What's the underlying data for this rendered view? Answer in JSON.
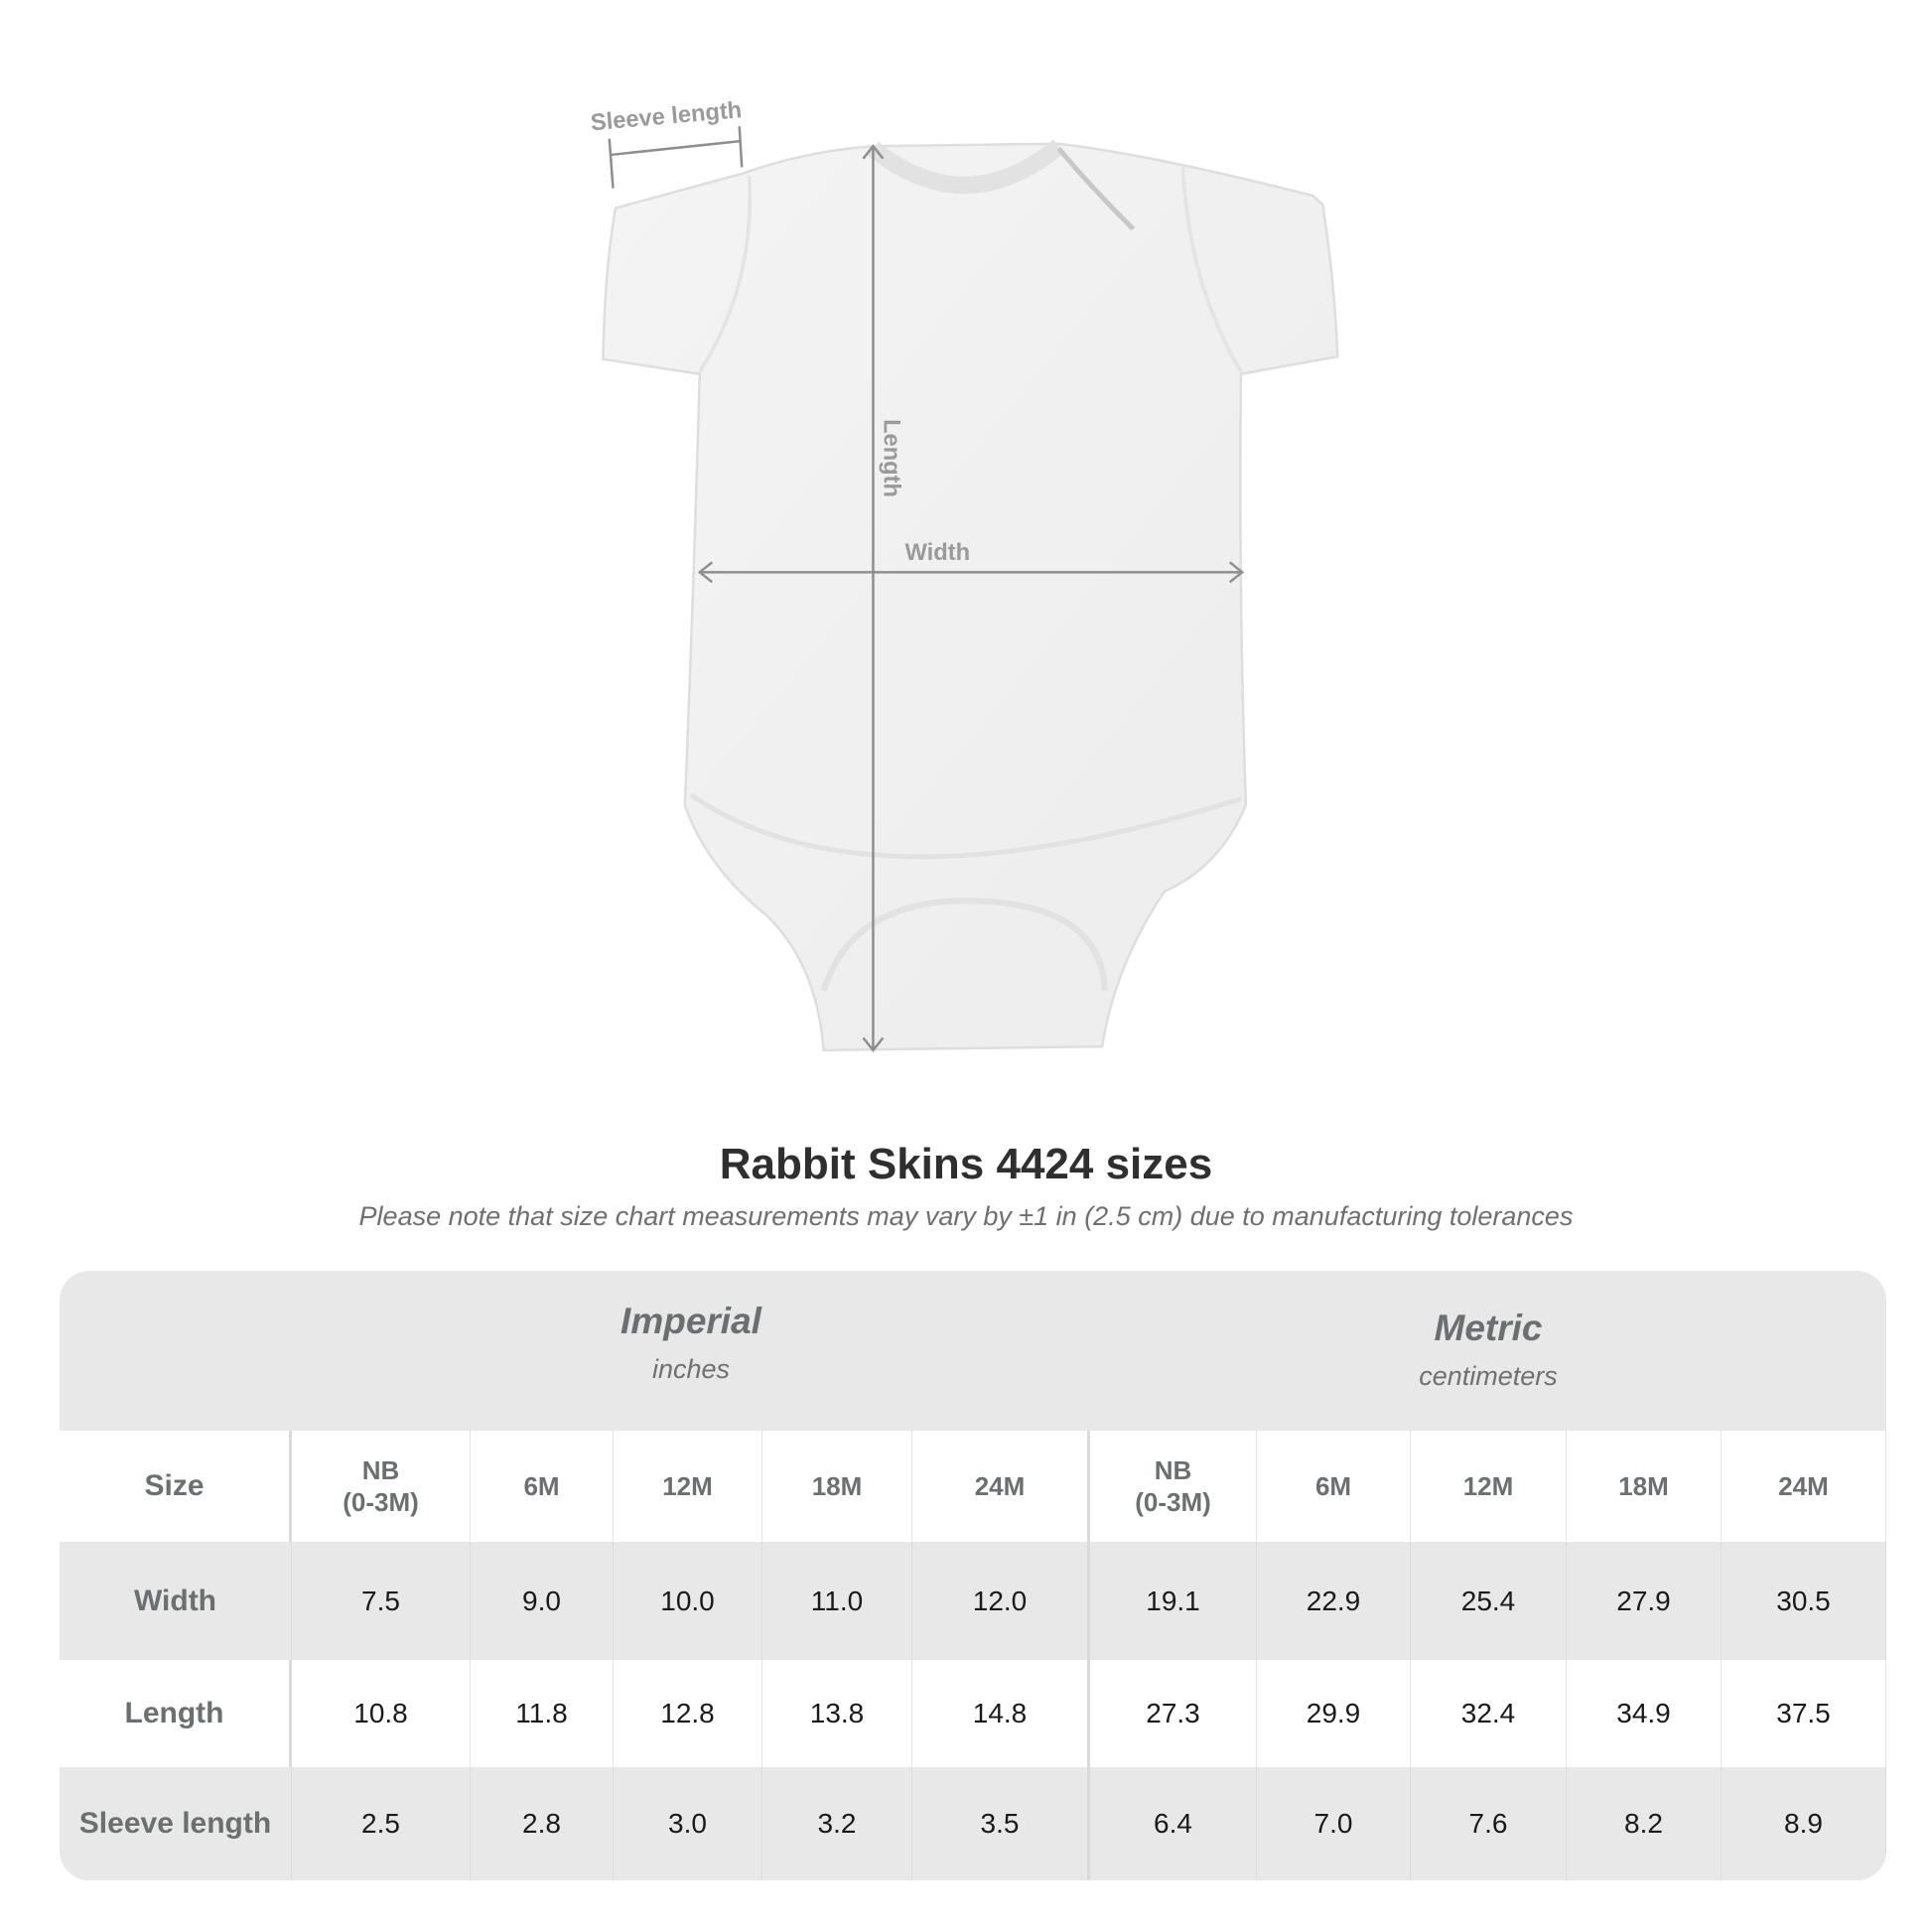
{
  "diagram": {
    "labels": {
      "sleeve": "Sleeve length",
      "length": "Length",
      "width": "Width"
    }
  },
  "title": "Rabbit Skins 4424 sizes",
  "subtitle": "Please note that size chart measurements may vary by ±1 in (2.5 cm) due to manufacturing tolerances",
  "table": {
    "imperial": {
      "name": "Imperial",
      "unit": "inches"
    },
    "metric": {
      "name": "Metric",
      "unit": "centimeters"
    },
    "size_label": "Size",
    "sizes": [
      "NB\n(0-3M)",
      "6M",
      "12M",
      "18M",
      "24M",
      "NB\n(0-3M)",
      "6M",
      "12M",
      "18M",
      "24M"
    ],
    "rows": [
      {
        "label": "Width",
        "values": [
          "7.5",
          "9.0",
          "10.0",
          "11.0",
          "12.0",
          "19.1",
          "22.9",
          "25.4",
          "27.9",
          "30.5"
        ]
      },
      {
        "label": "Length",
        "values": [
          "10.8",
          "11.8",
          "12.8",
          "13.8",
          "14.8",
          "27.3",
          "29.9",
          "32.4",
          "34.9",
          "37.5"
        ]
      },
      {
        "label": "Sleeve length",
        "values": [
          "2.5",
          "2.8",
          "3.0",
          "3.2",
          "3.5",
          "6.4",
          "7.0",
          "7.6",
          "8.2",
          "8.9"
        ]
      }
    ]
  }
}
